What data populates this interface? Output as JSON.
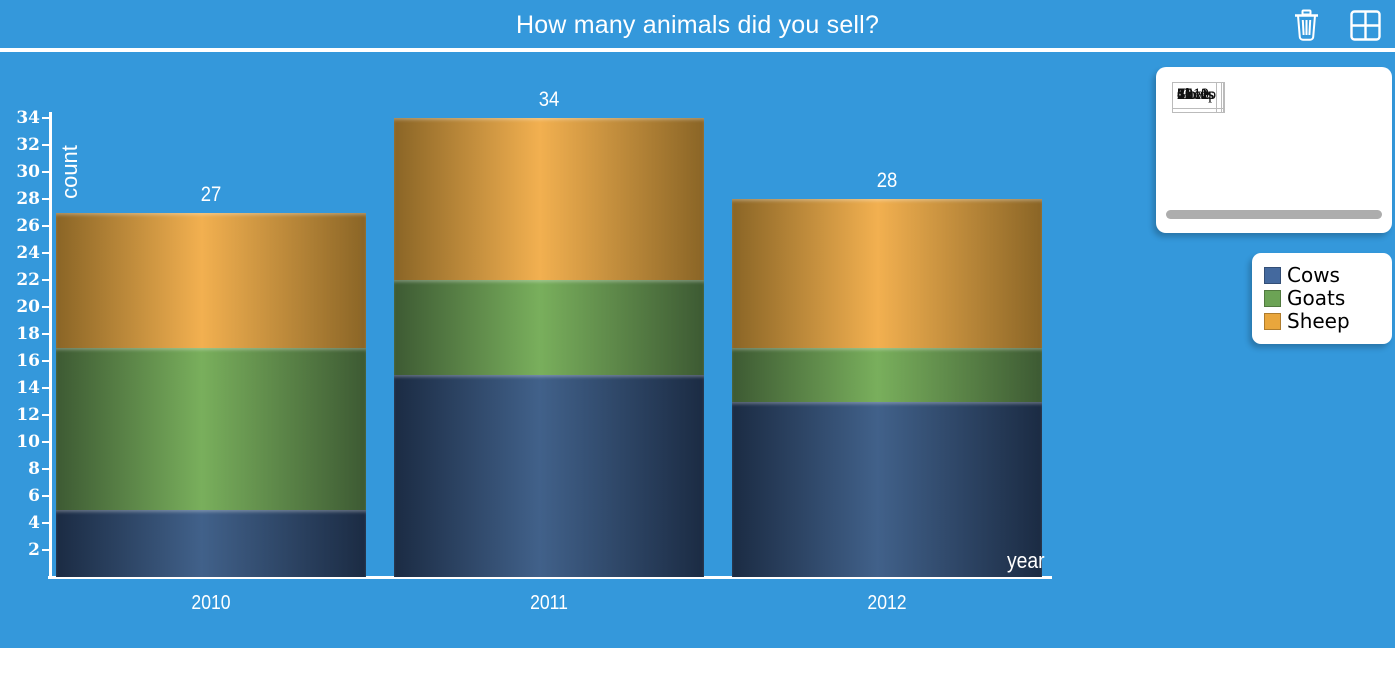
{
  "header": {
    "title": "How many animals did you sell?",
    "icons": {
      "delete": "trash-icon",
      "layout": "window-grid-icon"
    }
  },
  "chart_data": {
    "type": "bar",
    "stacked": true,
    "title": "How many animals did you sell?",
    "xlabel": "year",
    "ylabel": "count",
    "categories": [
      "2010",
      "2011",
      "2012"
    ],
    "series": [
      {
        "name": "Cows",
        "values": [
          5,
          15,
          13
        ],
        "color": "#44699E",
        "gradient_dark": "#1B2B43",
        "gradient_light": "#41618A"
      },
      {
        "name": "Goats",
        "values": [
          12,
          7,
          4
        ],
        "color": "#6CA355",
        "gradient_dark": "#3D5A33",
        "gradient_light": "#79AF5C"
      },
      {
        "name": "Sheep",
        "values": [
          10,
          12,
          11
        ],
        "color": "#E9A63C",
        "gradient_dark": "#8A6526",
        "gradient_light": "#F2B050"
      }
    ],
    "totals": [
      27,
      34,
      28
    ],
    "yticks": [
      2,
      4,
      6,
      8,
      10,
      12,
      14,
      16,
      18,
      20,
      22,
      24,
      26,
      28,
      30,
      32,
      34
    ],
    "ylim": [
      0,
      34
    ],
    "grid": false,
    "legend_position": "right"
  },
  "table": {
    "corner_label": "",
    "columns": [
      "Cows",
      "Goats",
      "Sheep"
    ],
    "rows": [
      {
        "label": "2010",
        "values": [
          "5",
          "12",
          "10"
        ]
      },
      {
        "label": "2011",
        "values": [
          "15",
          "7",
          "12"
        ]
      },
      {
        "label": "2012",
        "values": [
          "13",
          "4",
          "11"
        ]
      }
    ]
  },
  "legend": {
    "items": [
      {
        "label": "Cows",
        "color": "#44699E"
      },
      {
        "label": "Goats",
        "color": "#6CA355"
      },
      {
        "label": "Sheep",
        "color": "#E9A63C"
      }
    ]
  },
  "colors": {
    "background": "#3498DB",
    "axis": "#FFFFFF",
    "label_text": "#FFFFFF",
    "panel": "#FFFFFF",
    "table_border": "#BBBBBB",
    "scrollbar": "#ADADAD"
  }
}
